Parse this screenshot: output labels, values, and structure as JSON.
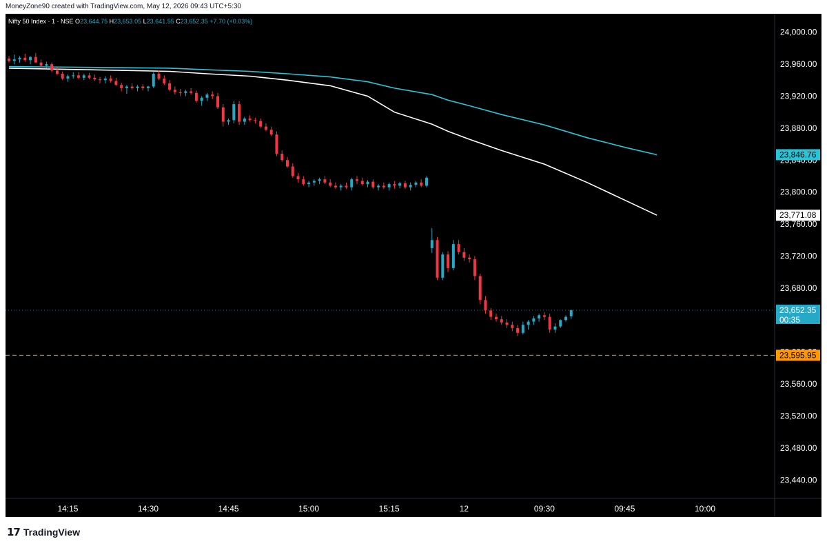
{
  "header": {
    "attribution": "MoneyZone90 created with TradingView.com, May 12, 2026 09:43 UTC+5:30"
  },
  "legend": {
    "symbol": "Nifty 50 Index · 1 · NSE",
    "o_label": "O",
    "o_value": "23,644.75",
    "h_label": "H",
    "h_value": "23,653.05",
    "l_label": "L",
    "l_value": "23,641.55",
    "c_label": "C",
    "c_value": "23,652.35",
    "change": "+7.70 (+0.03%)"
  },
  "footer": {
    "brand": "TradingView",
    "logo_icon": "tradingview-logo-icon"
  },
  "colors": {
    "up": "#26a9c6",
    "down": "#f23645",
    "ema_fast": "#ffffff",
    "ema_slow": "#26c6da",
    "level": "#ff9800"
  },
  "chart_data": {
    "type": "candlestick",
    "y_ticks": [
      24000,
      23960,
      23920,
      23880,
      23840,
      23800,
      23760,
      23720,
      23680,
      23640,
      23600,
      23560,
      23520,
      23480,
      23440
    ],
    "y_tick_labels": [
      "24,000.00",
      "23,960.00",
      "23,920.00",
      "23,880.00",
      "23,840.00",
      "23,800.00",
      "23,760.00",
      "23,720.00",
      "23,680.00",
      "23,640.00",
      "23,600.00",
      "23,560.00",
      "23,520.00",
      "23,480.00",
      "23,440.00"
    ],
    "ylim": [
      23417,
      24023
    ],
    "x_ticks": [
      {
        "label": "14:15",
        "index": 11
      },
      {
        "label": "14:30",
        "index": 26
      },
      {
        "label": "14:45",
        "index": 41
      },
      {
        "label": "15:00",
        "index": 56
      },
      {
        "label": "15:15",
        "index": 71
      },
      {
        "label": "12",
        "index": 85
      },
      {
        "label": "09:30",
        "index": 100
      },
      {
        "label": "09:45",
        "index": 115
      },
      {
        "label": "10:00",
        "index": 130
      }
    ],
    "x_range": [
      0,
      143
    ],
    "candles": [
      [
        23967,
        23970,
        23962,
        23964
      ],
      [
        23964,
        23972,
        23960,
        23966
      ],
      [
        23966,
        23970,
        23962,
        23968
      ],
      [
        23968,
        23973,
        23963,
        23965
      ],
      [
        23965,
        23970,
        23960,
        23969
      ],
      [
        23969,
        23974,
        23964,
        23962
      ],
      [
        23962,
        23966,
        23956,
        23958
      ],
      [
        23958,
        23963,
        23955,
        23960
      ],
      [
        23960,
        23962,
        23950,
        23952
      ],
      [
        23952,
        23956,
        23946,
        23948
      ],
      [
        23948,
        23951,
        23940,
        23942
      ],
      [
        23942,
        23947,
        23938,
        23945
      ],
      [
        23945,
        23950,
        23942,
        23946
      ],
      [
        23946,
        23950,
        23941,
        23943
      ],
      [
        23943,
        23948,
        23940,
        23946
      ],
      [
        23946,
        23949,
        23941,
        23943
      ],
      [
        23943,
        23947,
        23939,
        23941
      ],
      [
        23941,
        23944,
        23936,
        23940
      ],
      [
        23940,
        23945,
        23936,
        23942
      ],
      [
        23942,
        23946,
        23937,
        23939
      ],
      [
        23939,
        23943,
        23933,
        23934
      ],
      [
        23934,
        23937,
        23926,
        23930
      ],
      [
        23930,
        23934,
        23923,
        23932
      ],
      [
        23932,
        23936,
        23928,
        23930
      ],
      [
        23930,
        23934,
        23926,
        23932
      ],
      [
        23932,
        23935,
        23927,
        23930
      ],
      [
        23930,
        23933,
        23926,
        23932
      ],
      [
        23932,
        23950,
        23930,
        23948
      ],
      [
        23948,
        23952,
        23940,
        23942
      ],
      [
        23942,
        23946,
        23934,
        23936
      ],
      [
        23936,
        23940,
        23926,
        23928
      ],
      [
        23928,
        23932,
        23922,
        23925
      ],
      [
        23925,
        23929,
        23920,
        23924
      ],
      [
        23924,
        23928,
        23920,
        23926
      ],
      [
        23926,
        23930,
        23922,
        23924
      ],
      [
        23924,
        23927,
        23912,
        23914
      ],
      [
        23914,
        23920,
        23908,
        23918
      ],
      [
        23918,
        23924,
        23914,
        23922
      ],
      [
        23922,
        23926,
        23916,
        23920
      ],
      [
        23920,
        23924,
        23904,
        23906
      ],
      [
        23906,
        23910,
        23882,
        23888
      ],
      [
        23888,
        23892,
        23884,
        23890
      ],
      [
        23890,
        23914,
        23886,
        23910
      ],
      [
        23910,
        23914,
        23884,
        23888
      ],
      [
        23888,
        23894,
        23884,
        23892
      ],
      [
        23892,
        23896,
        23888,
        23890
      ],
      [
        23890,
        23893,
        23886,
        23889
      ],
      [
        23889,
        23892,
        23880,
        23882
      ],
      [
        23882,
        23886,
        23876,
        23878
      ],
      [
        23878,
        23882,
        23870,
        23872
      ],
      [
        23872,
        23876,
        23845,
        23848
      ],
      [
        23848,
        23852,
        23838,
        23840
      ],
      [
        23840,
        23844,
        23830,
        23832
      ],
      [
        23832,
        23836,
        23818,
        23820
      ],
      [
        23820,
        23824,
        23812,
        23816
      ],
      [
        23816,
        23820,
        23808,
        23810
      ],
      [
        23810,
        23814,
        23806,
        23812
      ],
      [
        23812,
        23816,
        23808,
        23814
      ],
      [
        23814,
        23818,
        23810,
        23816
      ],
      [
        23816,
        23820,
        23810,
        23812
      ],
      [
        23812,
        23816,
        23806,
        23808
      ],
      [
        23808,
        23812,
        23804,
        23806
      ],
      [
        23806,
        23810,
        23802,
        23808
      ],
      [
        23808,
        23812,
        23804,
        23806
      ],
      [
        23806,
        23818,
        23802,
        23816
      ],
      [
        23816,
        23820,
        23810,
        23814
      ],
      [
        23814,
        23818,
        23808,
        23810
      ],
      [
        23810,
        23815,
        23806,
        23813
      ],
      [
        23813,
        23816,
        23804,
        23806
      ],
      [
        23806,
        23810,
        23802,
        23808
      ],
      [
        23808,
        23812,
        23804,
        23806
      ],
      [
        23806,
        23812,
        23802,
        23810
      ],
      [
        23810,
        23814,
        23804,
        23808
      ],
      [
        23808,
        23813,
        23805,
        23811
      ],
      [
        23811,
        23814,
        23804,
        23806
      ],
      [
        23806,
        23812,
        23802,
        23809
      ],
      [
        23809,
        23814,
        23806,
        23812
      ],
      [
        23812,
        23816,
        23806,
        23808
      ],
      [
        23808,
        23820,
        23806,
        23818
      ],
      [
        23730,
        23755,
        23724,
        23740
      ],
      [
        23740,
        23744,
        23690,
        23693
      ],
      [
        23693,
        23725,
        23690,
        23722
      ],
      [
        23722,
        23726,
        23700,
        23705
      ],
      [
        23705,
        23740,
        23702,
        23735
      ],
      [
        23735,
        23740,
        23722,
        23725
      ],
      [
        23725,
        23730,
        23714,
        23718
      ],
      [
        23718,
        23722,
        23712,
        23716
      ],
      [
        23716,
        23720,
        23690,
        23695
      ],
      [
        23695,
        23698,
        23660,
        23665
      ],
      [
        23665,
        23670,
        23648,
        23652
      ],
      [
        23652,
        23655,
        23640,
        23644
      ],
      [
        23644,
        23648,
        23638,
        23641
      ],
      [
        23641,
        23645,
        23634,
        23637
      ],
      [
        23637,
        23641,
        23630,
        23634
      ],
      [
        23634,
        23638,
        23626,
        23630
      ],
      [
        23630,
        23634,
        23620,
        23624
      ],
      [
        23624,
        23638,
        23622,
        23634
      ],
      [
        23634,
        23640,
        23628,
        23638
      ],
      [
        23638,
        23645,
        23634,
        23642
      ],
      [
        23642,
        23648,
        23638,
        23646
      ],
      [
        23646,
        23650,
        23640,
        23644
      ],
      [
        23644,
        23648,
        23624,
        23628
      ],
      [
        23628,
        23636,
        23624,
        23632
      ],
      [
        23632,
        23641,
        23630,
        23640
      ],
      [
        23640,
        23646,
        23638,
        23644
      ],
      [
        23644.75,
        23653.05,
        23641.55,
        23652.35
      ]
    ],
    "ema_fast": [
      23955,
      23953,
      23951,
      23948,
      23945,
      23940,
      23933,
      23920,
      23900,
      23885,
      23876,
      23866,
      23852,
      23835,
      23812,
      23790,
      23771.08
    ],
    "ema_slow": [
      23957,
      23956,
      23955,
      23953,
      23951,
      23948,
      23944,
      23938,
      23930,
      23922,
      23915,
      23908,
      23897,
      23884,
      23868,
      23856,
      23846.76
    ],
    "ma_index": [
      0,
      15,
      30,
      37,
      45,
      52,
      60,
      67,
      72,
      79,
      82,
      86,
      92,
      100,
      108,
      115,
      121
    ],
    "last_price": "23,652.35",
    "countdown": "00:35",
    "ema_fast_value": "23,771.08",
    "ema_slow_value": "23,846.76",
    "level_value": "23,595.95",
    "level": 23595.95
  }
}
